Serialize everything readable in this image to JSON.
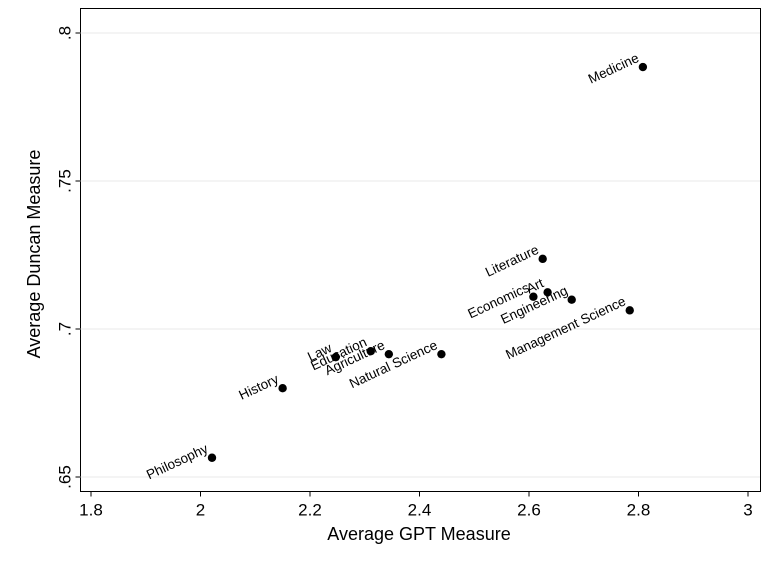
{
  "chart_data": {
    "type": "scatter",
    "title": "",
    "xlabel": "Average GPT Measure",
    "ylabel": "Average Duncan Measure",
    "xlim": [
      1.8,
      3.0
    ],
    "ylim": [
      0.65,
      0.8
    ],
    "x_ticks": [
      1.8,
      2.0,
      2.2,
      2.4,
      2.6,
      2.8,
      3.0
    ],
    "x_tick_labels": [
      "1.8",
      "2",
      "2.2",
      "2.4",
      "2.6",
      "2.8",
      "3"
    ],
    "y_ticks": [
      0.65,
      0.7,
      0.75,
      0.8
    ],
    "y_tick_labels": [
      ".65",
      ".7",
      ".75",
      ".8"
    ],
    "grid": "horizontal",
    "legend": "none",
    "marker_color": "#000000",
    "grid_color": "#e8e8e8",
    "points": [
      {
        "label": "Medicine",
        "x": 2.808,
        "y": 0.7885
      },
      {
        "label": "Literature",
        "x": 2.625,
        "y": 0.7237
      },
      {
        "label": "Art",
        "x": 2.634,
        "y": 0.7124
      },
      {
        "label": "Economics",
        "x": 2.608,
        "y": 0.7109
      },
      {
        "label": "Engineering",
        "x": 2.678,
        "y": 0.7099
      },
      {
        "label": "Management Science",
        "x": 2.784,
        "y": 0.7063
      },
      {
        "label": "Natural Science",
        "x": 2.44,
        "y": 0.6915
      },
      {
        "label": "Agriculture",
        "x": 2.344,
        "y": 0.6915
      },
      {
        "label": "Education",
        "x": 2.311,
        "y": 0.6925
      },
      {
        "label": "Law",
        "x": 2.247,
        "y": 0.6905
      },
      {
        "label": "History",
        "x": 2.15,
        "y": 0.68
      },
      {
        "label": "Philosophy",
        "x": 2.021,
        "y": 0.6565
      }
    ]
  }
}
